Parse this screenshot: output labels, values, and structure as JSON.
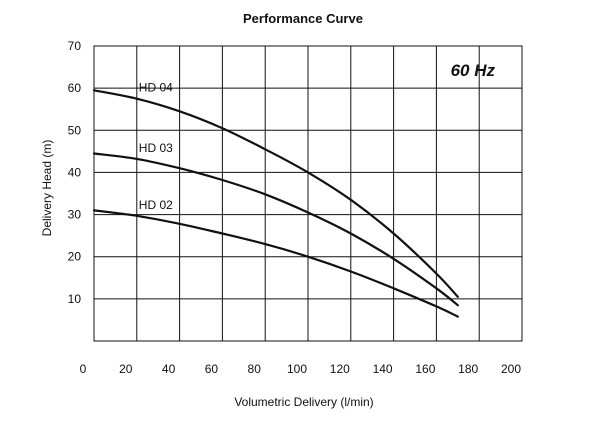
{
  "chart_data": {
    "type": "line",
    "title": "Performance Curve",
    "badge": "60 Hz",
    "xlabel": "Volumetric Delivery (l/min)",
    "ylabel": "Delivery Head (m)",
    "xlim": [
      0,
      200
    ],
    "ylim": [
      0,
      70
    ],
    "xticks": [
      0,
      20,
      40,
      60,
      80,
      100,
      120,
      140,
      160,
      180,
      200
    ],
    "yticks": [
      10,
      20,
      30,
      40,
      50,
      60,
      70
    ],
    "grid": true,
    "series": [
      {
        "name": "HD 04",
        "x": [
          0,
          20,
          40,
          60,
          80,
          100,
          120,
          140,
          160,
          170
        ],
        "y": [
          59.5,
          57.5,
          54.5,
          50.5,
          45.5,
          40,
          33.5,
          25.5,
          16,
          10.5
        ]
      },
      {
        "name": "HD 03",
        "x": [
          0,
          20,
          40,
          60,
          80,
          100,
          120,
          140,
          160,
          170
        ],
        "y": [
          44.5,
          43.2,
          41,
          38.2,
          34.8,
          30.5,
          25.5,
          19.5,
          12.5,
          8.5
        ]
      },
      {
        "name": "HD 02",
        "x": [
          0,
          20,
          40,
          60,
          80,
          100,
          120,
          140,
          160,
          170
        ],
        "y": [
          31,
          29.7,
          27.8,
          25.5,
          23,
          20,
          16.5,
          12.5,
          8.2,
          5.8
        ]
      }
    ]
  }
}
